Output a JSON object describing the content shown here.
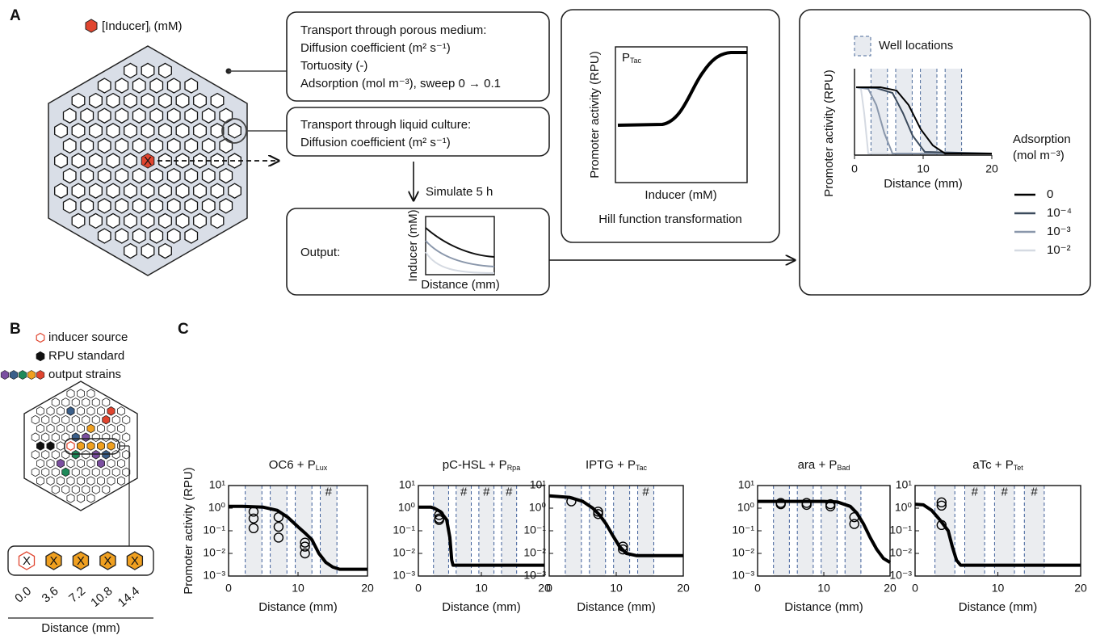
{
  "panel_a": {
    "label": "A",
    "legend": {
      "text": "[Inducer]",
      "sub": "i",
      "unit": " (mM)"
    },
    "source_mark": "X",
    "porous_box": [
      "Transport through porous medium:",
      "Diffusion coefficient (m² s⁻¹)",
      "Tortuosity (-)",
      "Adsorption (mol m⁻³), sweep 0 → 0.1"
    ],
    "liquid_box": [
      "Transport through liquid culture:",
      "Diffusion coefficient (m² s⁻¹)"
    ],
    "step": "Simulate 5 h",
    "output": {
      "label": "Output:",
      "ylabel": "Inducer (mM)",
      "xlabel": "Distance (mm)"
    },
    "hill": {
      "ylabel": "Promoter activity (RPU)",
      "xlabel": "Inducer (mM)",
      "promoter": "P",
      "promoter_sub": "Tac",
      "caption": "Hill function transformation"
    },
    "simulation": {
      "well_legend": "Well locations",
      "ylabel": "Promoter activity (RPU)",
      "xlabel": "Distance (mm)",
      "xlim": [
        0,
        20
      ],
      "xticks": [
        0,
        10,
        20
      ],
      "bands": [
        [
          2.4,
          4.8
        ],
        [
          6.0,
          8.4
        ],
        [
          9.6,
          12.0
        ],
        [
          13.2,
          15.6
        ]
      ],
      "legend_title": [
        "Adsorption",
        "(mol m⁻³)"
      ],
      "series": [
        {
          "name": "0",
          "color": "#000000"
        },
        {
          "name": "10⁻⁴",
          "color": "#3b4a5c"
        },
        {
          "name": "10⁻³",
          "color": "#8a97ab"
        },
        {
          "name": "10⁻²",
          "color": "#d5dae2"
        }
      ]
    }
  },
  "panel_b": {
    "label": "B",
    "legend": [
      "inducer source",
      "RPU standard",
      "output strains"
    ],
    "well_mark": "X",
    "distances": [
      {
        "value": 0,
        "label": "0.0"
      },
      3.6,
      7.2,
      {
        "value": 10.8,
        "label": "10.8"
      },
      14.4
    ],
    "xlabel": "Distance (mm)"
  },
  "panel_c": {
    "label": "C"
  },
  "chart_data": [
    {
      "type": "line",
      "title": "OC6 + P",
      "title_sub": "Lux",
      "ylabel": "Promoter activity (RPU)",
      "xlabel": "Distance (mm)",
      "xlim": [
        0,
        20
      ],
      "xticks": [
        0,
        10,
        20
      ],
      "ylim": [
        0.001,
        10
      ],
      "log_y": true,
      "yticks": [
        {
          "value": 10,
          "label": "10¹"
        },
        {
          "value": 1,
          "label": "10⁰"
        },
        {
          "value": 0.1,
          "label": "10⁻¹"
        },
        {
          "value": 0.01,
          "label": "10⁻²"
        },
        {
          "value": 0.001,
          "label": "10⁻³"
        }
      ],
      "bands": [
        [
          2.4,
          4.8
        ],
        [
          6.0,
          8.4
        ],
        [
          9.6,
          12.0
        ],
        [
          13.2,
          15.6
        ]
      ],
      "annotations": [
        {
          "text": "#",
          "x": 14.4,
          "y": 5
        }
      ],
      "series": [
        {
          "type": "line",
          "color": "#000000",
          "x": [
            0,
            2,
            5,
            7,
            8.5,
            10,
            11,
            12,
            13,
            14,
            15,
            16,
            20
          ],
          "values": [
            1.2,
            1.2,
            1.1,
            0.8,
            0.4,
            0.15,
            0.08,
            0.04,
            0.01,
            0.004,
            0.0025,
            0.002,
            0.002
          ]
        },
        {
          "type": "scatter",
          "color": "#000000",
          "x": [
            3.6,
            3.6,
            3.6,
            7.2,
            7.2,
            7.2,
            11,
            11,
            11
          ],
          "values": [
            0.7,
            0.35,
            0.13,
            0.4,
            0.15,
            0.05,
            0.03,
            0.02,
            0.01
          ]
        }
      ]
    },
    {
      "type": "line",
      "title": "pC-HSL + P",
      "title_sub": "Rpa",
      "xlabel": "Distance (mm)",
      "xlim": [
        0,
        20
      ],
      "xticks": [
        0,
        10,
        20
      ],
      "ylim": [
        0.001,
        10
      ],
      "log_y": true,
      "yticks": [
        {
          "value": 10,
          "label": "10¹"
        },
        {
          "value": 1,
          "label": "10⁰"
        },
        {
          "value": 0.1,
          "label": "10⁻¹"
        },
        {
          "value": 0.01,
          "label": "10⁻²"
        },
        {
          "value": 0.001,
          "label": "10⁻³"
        }
      ],
      "bands": [
        [
          2.4,
          4.8
        ],
        [
          6.0,
          8.4
        ],
        [
          9.6,
          12.0
        ],
        [
          13.2,
          15.6
        ]
      ],
      "annotations": [
        {
          "text": "#",
          "x": 7.2,
          "y": 5
        },
        {
          "text": "#",
          "x": 10.8,
          "y": 5
        },
        {
          "text": "#",
          "x": 14.4,
          "y": 5
        }
      ],
      "series": [
        {
          "type": "line",
          "color": "#000000",
          "x": [
            0,
            2,
            2.5,
            3.5,
            4.5,
            5,
            5.3,
            5.5,
            20
          ],
          "values": [
            1.1,
            1.1,
            1.0,
            0.7,
            0.3,
            0.05,
            0.005,
            0.003,
            0.003
          ]
        },
        {
          "type": "scatter",
          "color": "#000000",
          "x": [
            3.3,
            3.3,
            3.3
          ],
          "values": [
            0.5,
            0.35,
            0.3
          ]
        }
      ]
    },
    {
      "type": "line",
      "title": "IPTG + P",
      "title_sub": "Tac",
      "xlabel": "Distance (mm)",
      "xlim": [
        0,
        20
      ],
      "xticks": [
        0,
        10,
        20
      ],
      "ylim": [
        0.001,
        10
      ],
      "log_y": true,
      "yticks": [
        {
          "value": 10,
          "label": "10¹"
        },
        {
          "value": 1,
          "label": "10⁰"
        },
        {
          "value": 0.1,
          "label": "10⁻¹"
        },
        {
          "value": 0.01,
          "label": "10⁻²"
        },
        {
          "value": 0.001,
          "label": "10⁻³"
        }
      ],
      "bands": [
        [
          2.4,
          4.8
        ],
        [
          6.0,
          8.4
        ],
        [
          9.6,
          12.0
        ],
        [
          13.2,
          15.6
        ]
      ],
      "annotations": [
        {
          "text": "#",
          "x": 14.4,
          "y": 5
        }
      ],
      "series": [
        {
          "type": "line",
          "color": "#000000",
          "x": [
            0,
            3,
            5,
            6.5,
            7.5,
            8.5,
            9.5,
            10.5,
            11.5,
            13,
            20
          ],
          "values": [
            3.5,
            3,
            2,
            1,
            0.5,
            0.2,
            0.06,
            0.02,
            0.01,
            0.008,
            0.008
          ]
        },
        {
          "type": "scatter",
          "color": "#000000",
          "x": [
            3.3,
            7.3,
            7.3,
            11,
            11
          ],
          "values": [
            2,
            0.7,
            0.55,
            0.02,
            0.015
          ]
        }
      ]
    },
    {
      "type": "line",
      "title": "ara + P",
      "title_sub": "Bad",
      "xlabel": "Distance (mm)",
      "xlim": [
        0,
        20
      ],
      "xticks": [
        0,
        10,
        20
      ],
      "ylim": [
        0.001,
        10
      ],
      "log_y": true,
      "yticks": [
        {
          "value": 10,
          "label": "10¹"
        },
        {
          "value": 1,
          "label": "10⁰"
        },
        {
          "value": 0.1,
          "label": "10⁻¹"
        },
        {
          "value": 0.01,
          "label": "10⁻²"
        },
        {
          "value": 0.001,
          "label": "10⁻³"
        }
      ],
      "bands": [
        [
          2.4,
          4.8
        ],
        [
          6.0,
          8.4
        ],
        [
          9.6,
          12.0
        ],
        [
          13.2,
          15.6
        ]
      ],
      "annotations": [],
      "series": [
        {
          "type": "line",
          "color": "#000000",
          "x": [
            0,
            10,
            12,
            14,
            15,
            16,
            17,
            18,
            19,
            20
          ],
          "values": [
            2,
            2,
            1.9,
            1.2,
            0.6,
            0.2,
            0.05,
            0.015,
            0.006,
            0.004
          ]
        },
        {
          "type": "scatter",
          "color": "#000000",
          "x": [
            3.5,
            3.5,
            7.4,
            7.4,
            11,
            11,
            14.6,
            14.6
          ],
          "values": [
            1.7,
            1.5,
            1.7,
            1.4,
            1.5,
            1.2,
            0.4,
            0.2
          ]
        }
      ]
    },
    {
      "type": "line",
      "title": "aTc + P",
      "title_sub": "Tet",
      "xlabel": "Distance (mm)",
      "xlim": [
        0,
        20
      ],
      "xticks": [
        0,
        10,
        20
      ],
      "ylim": [
        0.001,
        10
      ],
      "log_y": true,
      "yticks": [
        {
          "value": 10,
          "label": "10¹"
        },
        {
          "value": 1,
          "label": "10⁰"
        },
        {
          "value": 0.1,
          "label": "10⁻¹"
        },
        {
          "value": 0.01,
          "label": "10⁻²"
        },
        {
          "value": 0.001,
          "label": "10⁻³"
        }
      ],
      "bands": [
        [
          2.4,
          4.8
        ],
        [
          6.0,
          8.4
        ],
        [
          9.6,
          12.0
        ],
        [
          13.2,
          15.6
        ]
      ],
      "annotations": [
        {
          "text": "#",
          "x": 7.2,
          "y": 5
        },
        {
          "text": "#",
          "x": 10.8,
          "y": 5
        },
        {
          "text": "#",
          "x": 14.4,
          "y": 5
        }
      ],
      "series": [
        {
          "type": "line",
          "color": "#000000",
          "x": [
            0,
            1,
            2,
            3,
            4,
            4.5,
            5,
            5.5,
            20
          ],
          "values": [
            1.5,
            1.4,
            0.8,
            0.3,
            0.1,
            0.02,
            0.005,
            0.003,
            0.003
          ]
        },
        {
          "type": "scatter",
          "color": "#000000",
          "x": [
            3.2,
            3.2,
            3.2
          ],
          "values": [
            1.8,
            1.3,
            0.18
          ]
        }
      ]
    }
  ]
}
